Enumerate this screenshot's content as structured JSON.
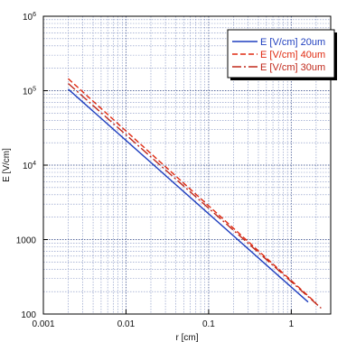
{
  "chart_data": {
    "type": "line",
    "title": "",
    "xlabel": "r [cm]",
    "ylabel": "E [V/cm]",
    "xscale": "log",
    "yscale": "log",
    "xlim": [
      0.001,
      3
    ],
    "ylim": [
      100,
      1000000
    ],
    "x_ticks": [
      {
        "value": 0.001,
        "label": "0.001"
      },
      {
        "value": 0.01,
        "label": "0.01"
      },
      {
        "value": 0.1,
        "label": "0.1"
      },
      {
        "value": 1,
        "label": "1"
      }
    ],
    "y_ticks": [
      {
        "value": 100,
        "label": "100",
        "sup": ""
      },
      {
        "value": 1000,
        "label": "1000",
        "sup": ""
      },
      {
        "value": 10000,
        "label": "10",
        "sup": "4"
      },
      {
        "value": 100000,
        "label": "10",
        "sup": "5"
      },
      {
        "value": 1000000,
        "label": "10",
        "sup": "6"
      }
    ],
    "grid": true,
    "legend_position": "top-right",
    "series": [
      {
        "name": "E [V/cm] 20um",
        "color": "#1f3fbf",
        "dash": "solid",
        "x": [
          0.002,
          1.6
        ],
        "y": [
          105000,
          145
        ]
      },
      {
        "name": "E [V/cm] 40um",
        "color": "#e02a10",
        "dash": "dashed",
        "x": [
          0.002,
          2.0
        ],
        "y": [
          145000,
          140
        ]
      },
      {
        "name": "E [V/cm] 30um",
        "color": "#c0281a",
        "dash": "dashdot",
        "x": [
          0.002,
          2.3
        ],
        "y": [
          125000,
          120
        ]
      }
    ]
  }
}
